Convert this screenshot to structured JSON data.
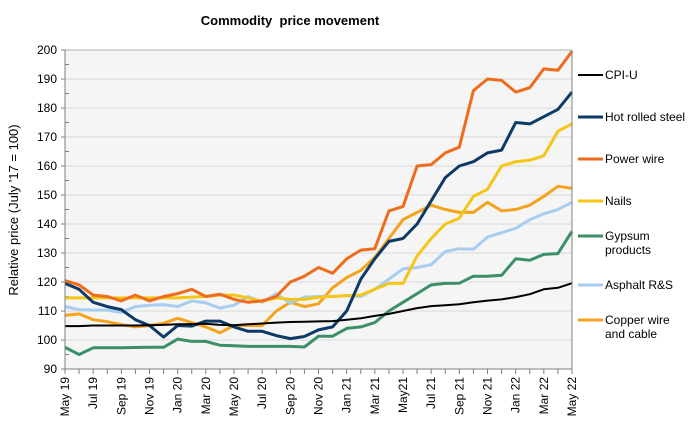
{
  "chart_data": {
    "type": "line",
    "title": "Commodity  price movement",
    "xlabel": "",
    "ylabel": "Relative price (July '17 = 100)",
    "ylim": [
      90,
      200
    ],
    "yticks": [
      90,
      100,
      110,
      120,
      130,
      140,
      150,
      160,
      170,
      180,
      190,
      200
    ],
    "grid": true,
    "legend_position": "right",
    "x": [
      "May 19",
      "Jun 19",
      "Jul 19",
      "Aug 19",
      "Sep 19",
      "Oct 19",
      "Nov 19",
      "Dec 19",
      "Jan 20",
      "Feb 20",
      "Mar 20",
      "Apr 20",
      "May 20",
      "Jun 20",
      "Jul 20",
      "Aug 20",
      "Sep 20",
      "Oct 20",
      "Nov 20",
      "Dec 20",
      "Jan 21",
      "Feb 21",
      "Mar 21",
      "Apr 21",
      "May21",
      "Jun 21",
      "Jul 21",
      "Aug 21",
      "Sep 21",
      "Oct 21",
      "Nov 21",
      "Dec 21",
      "Jan 22",
      "Feb 22",
      "Mar 22",
      "Apr 22",
      "May 22"
    ],
    "xtick_labels": [
      "May 19",
      "Jul 19",
      "Sep 19",
      "Nov 19",
      "Jan 20",
      "Mar 20",
      "May 20",
      "Jul 20",
      "Sep 20",
      "Nov 20",
      "Jan 21",
      "Mar 21",
      "May21",
      "Jul 21",
      "Sep 21",
      "Nov 21",
      "Jan 22",
      "Mar 22",
      "May 22"
    ],
    "series": [
      {
        "name": "CPI-U",
        "legend": [
          "CPI-U"
        ],
        "color": "#000000",
        "values": [
          104.8,
          104.8,
          105,
          105,
          105,
          105,
          105.1,
          105.2,
          105.4,
          105.5,
          105.6,
          105.2,
          105.1,
          105.4,
          105.7,
          106,
          106.2,
          106.3,
          106.4,
          106.5,
          107,
          107.5,
          108.3,
          109,
          110,
          111,
          111.7,
          112,
          112.3,
          113,
          113.6,
          114,
          114.8,
          115.8,
          117.5,
          118,
          119.6
        ]
      },
      {
        "name": "Hot rolled steel",
        "legend": [
          "Hot rolled steel"
        ],
        "color": "#0d3a66",
        "values": [
          119.5,
          117.5,
          113,
          111.5,
          110.5,
          107,
          105,
          101,
          105,
          104.8,
          106.5,
          106.5,
          104.5,
          103,
          103,
          101.5,
          100.5,
          101.2,
          103.5,
          104.5,
          110,
          121,
          128,
          134,
          135,
          140,
          148,
          156,
          160,
          161.5,
          164.5,
          165.5,
          175,
          174.5,
          177,
          179.5,
          185.5
        ]
      },
      {
        "name": "Power wire",
        "legend": [
          "Power wire"
        ],
        "color": "#ef6c1c",
        "values": [
          120.5,
          119,
          115.5,
          115,
          113.5,
          115.5,
          113.5,
          115,
          116,
          117.5,
          115,
          115.8,
          114,
          113,
          113.5,
          115,
          120,
          122,
          125,
          123,
          128,
          131,
          131.5,
          144.5,
          146,
          160,
          160.5,
          164.5,
          166.5,
          186,
          190,
          189.5,
          185.5,
          187,
          193.5,
          193,
          199.5
        ]
      },
      {
        "name": "Nails",
        "legend": [
          "Nails"
        ],
        "color": "#f5c518",
        "values": [
          114.5,
          114.5,
          114.5,
          114.5,
          114.5,
          114.5,
          114.5,
          114.5,
          114.5,
          114.8,
          115,
          115.5,
          115.5,
          114.5,
          113.3,
          114.5,
          114,
          114,
          114.8,
          115,
          115.3,
          115.5,
          117.5,
          119.5,
          119.5,
          129,
          135,
          140,
          142,
          149.5,
          152,
          160,
          161.5,
          162,
          163.5,
          172,
          174.5
        ]
      },
      {
        "name": "Gypsum products",
        "legend": [
          "Gypsum",
          "products"
        ],
        "color": "#3b9068",
        "values": [
          97.5,
          95,
          97.3,
          97.3,
          97.3,
          97.4,
          97.5,
          97.5,
          100.3,
          99.5,
          99.5,
          98.2,
          98,
          97.8,
          97.8,
          97.8,
          97.8,
          97.6,
          101.3,
          101.3,
          104,
          104.5,
          106,
          110,
          113,
          116,
          119,
          119.5,
          119.6,
          122,
          122,
          122.3,
          128,
          127.5,
          129.5,
          129.8,
          137.5
        ]
      },
      {
        "name": "Asphalt R&S",
        "legend": [
          "Asphalt R&S"
        ],
        "color": "#a7cdf0",
        "values": [
          111.5,
          110.5,
          110.3,
          110.3,
          109.5,
          111.5,
          112,
          112.2,
          111.5,
          113.5,
          112.8,
          111,
          112,
          115,
          113,
          116,
          112.7,
          114.8,
          115,
          115,
          115.3,
          115,
          117.5,
          121,
          124.5,
          125,
          126,
          130.5,
          131.5,
          131.3,
          135.5,
          137,
          138.5,
          141.5,
          143.5,
          145,
          147.5
        ]
      },
      {
        "name": "Copper wire and cable",
        "legend": [
          "Copper wire",
          "and cable"
        ],
        "color": "#f5a21c",
        "values": [
          108.5,
          109,
          107,
          106.3,
          105.3,
          104.5,
          105,
          105.8,
          107.5,
          106,
          104.5,
          102.5,
          105,
          105,
          105,
          110,
          113,
          111.5,
          112.5,
          118,
          121.5,
          124,
          128.5,
          135,
          141.5,
          144,
          146.5,
          145,
          144,
          144,
          147.5,
          144.5,
          145,
          146.5,
          149.5,
          153,
          152.3
        ]
      }
    ]
  }
}
